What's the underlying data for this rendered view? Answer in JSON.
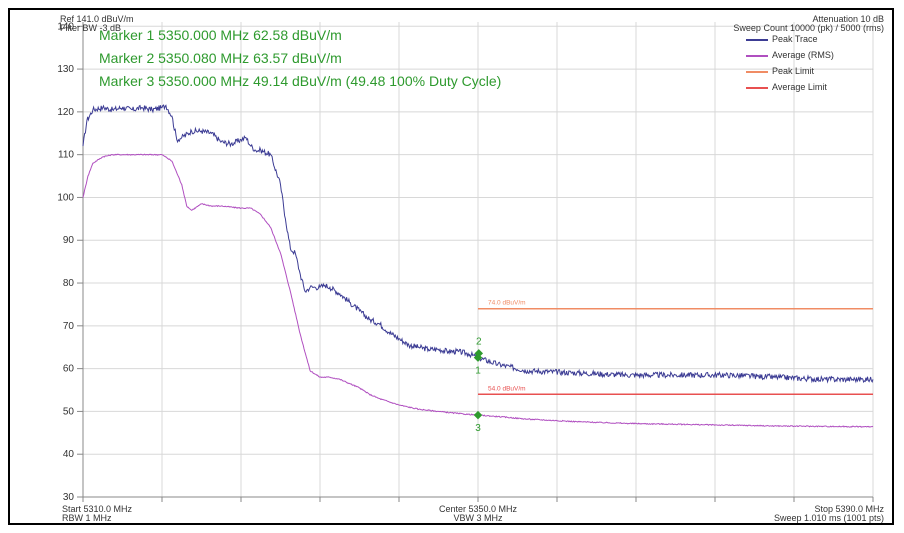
{
  "header": {
    "ref_level": "Ref 141.0 dBuV/m",
    "filter_bw": "Filter BW -3 dB",
    "attenuation": "Attenuation 10 dB",
    "sweep_count": "Sweep Count 10000 (pk) / 5000 (rms)"
  },
  "footer": {
    "start": "Start 5310.0 MHz",
    "rbw": "RBW 1 MHz",
    "center": "Center 5350.0 MHz",
    "vbw": "VBW 3 MHz",
    "stop": "Stop 5390.0 MHz",
    "sweep": "Sweep 1.010 ms (1001 pts)"
  },
  "markers_text": [
    "Marker 1 5350.000 MHz 62.58 dBuV/m",
    "Marker 2 5350.080 MHz 63.57 dBuV/m",
    "Marker 3 5350.000 MHz 49.14 dBuV/m (49.48 100% Duty Cycle)"
  ],
  "colors": {
    "peak_trace": "#3c3c94",
    "average_trace": "#b04fc0",
    "peak_limit": "#f08c64",
    "average_limit": "#e85050",
    "marker": "#2e9a2e",
    "grid": "#d8d8d8"
  },
  "chart_data": {
    "type": "line",
    "xlim": [
      5310,
      5390
    ],
    "ylim": [
      30,
      141
    ],
    "yticks": [
      30,
      40,
      50,
      60,
      70,
      80,
      90,
      100,
      110,
      120,
      130,
      140
    ],
    "x_grid_divisions": 10,
    "grid": true,
    "legend_position": "top-right",
    "legend": [
      "Peak Trace",
      "Average (RMS)",
      "Peak Limit",
      "Average Limit"
    ],
    "series": [
      {
        "name": "Peak Trace",
        "x": [
          5310,
          5310.4,
          5311,
          5312,
          5313,
          5314,
          5315,
          5316,
          5317,
          5318,
          5318.4,
          5319,
          5319.5,
          5320,
          5321,
          5322,
          5323,
          5324,
          5325,
          5326,
          5326.5,
          5327,
          5327.5,
          5328,
          5329,
          5330,
          5330.5,
          5331,
          5331.5,
          5332,
          5332.5,
          5333,
          5333.5,
          5334,
          5334.5,
          5335,
          5336,
          5337,
          5338,
          5339,
          5340,
          5341,
          5342,
          5343,
          5344,
          5345,
          5346,
          5347,
          5348,
          5349,
          5350,
          5352,
          5355,
          5360,
          5365,
          5370,
          5375,
          5380,
          5385,
          5390
        ],
        "y": [
          112,
          118,
          120.5,
          121,
          120.5,
          121,
          120.5,
          121,
          120.5,
          121,
          121.5,
          119,
          113.5,
          114,
          115.5,
          115.5,
          115,
          113,
          112.5,
          113.5,
          114,
          112,
          111,
          111,
          110,
          103,
          95,
          88,
          87,
          82,
          78,
          79,
          79,
          79,
          79.5,
          79,
          77.5,
          75.5,
          73.5,
          71.5,
          70.5,
          68.5,
          67,
          65.5,
          65,
          64.5,
          64.5,
          64,
          64,
          63.5,
          62.58,
          61,
          59.5,
          59,
          58.5,
          58.5,
          58.5,
          58,
          57.5,
          57.5
        ]
      },
      {
        "name": "Average (RMS)",
        "x": [
          5310,
          5310.5,
          5311,
          5312,
          5313,
          5314,
          5316,
          5318,
          5319,
          5320,
          5320.5,
          5321,
          5322,
          5323,
          5324,
          5326,
          5327,
          5328,
          5329,
          5330,
          5331,
          5332,
          5333,
          5334,
          5335,
          5336,
          5337,
          5338,
          5339,
          5340,
          5342,
          5344,
          5346,
          5348,
          5350,
          5352,
          5355,
          5360,
          5365,
          5370,
          5375,
          5380,
          5385,
          5390
        ],
        "y": [
          100,
          105,
          108,
          109.5,
          110,
          110,
          110,
          110,
          108.5,
          103,
          98,
          97,
          98.5,
          98,
          98,
          97.5,
          97.5,
          96,
          93,
          87,
          78,
          68,
          59.5,
          58,
          58,
          57.5,
          56.5,
          55.5,
          54,
          53,
          51.5,
          50.5,
          50,
          49.5,
          49.14,
          48.8,
          48.2,
          47.6,
          47.2,
          47,
          46.8,
          46.6,
          46.5,
          46.4
        ]
      }
    ],
    "limits": [
      {
        "name": "Peak Limit",
        "value": 74,
        "label": "74.0 dBuV/m",
        "x_start": 5350,
        "x_end": 5390
      },
      {
        "name": "Average Limit",
        "value": 54,
        "label": "54.0 dBuV/m",
        "x_start": 5350,
        "x_end": 5390
      }
    ],
    "markers": [
      {
        "label": "1",
        "x": 5350.0,
        "y": 62.58,
        "trace": "Peak Trace",
        "label_pos": "below"
      },
      {
        "label": "2",
        "x": 5350.08,
        "y": 63.57,
        "trace": "Peak Trace",
        "label_pos": "above"
      },
      {
        "label": "3",
        "x": 5350.0,
        "y": 49.14,
        "trace": "Average (RMS)",
        "label_pos": "below"
      }
    ]
  }
}
